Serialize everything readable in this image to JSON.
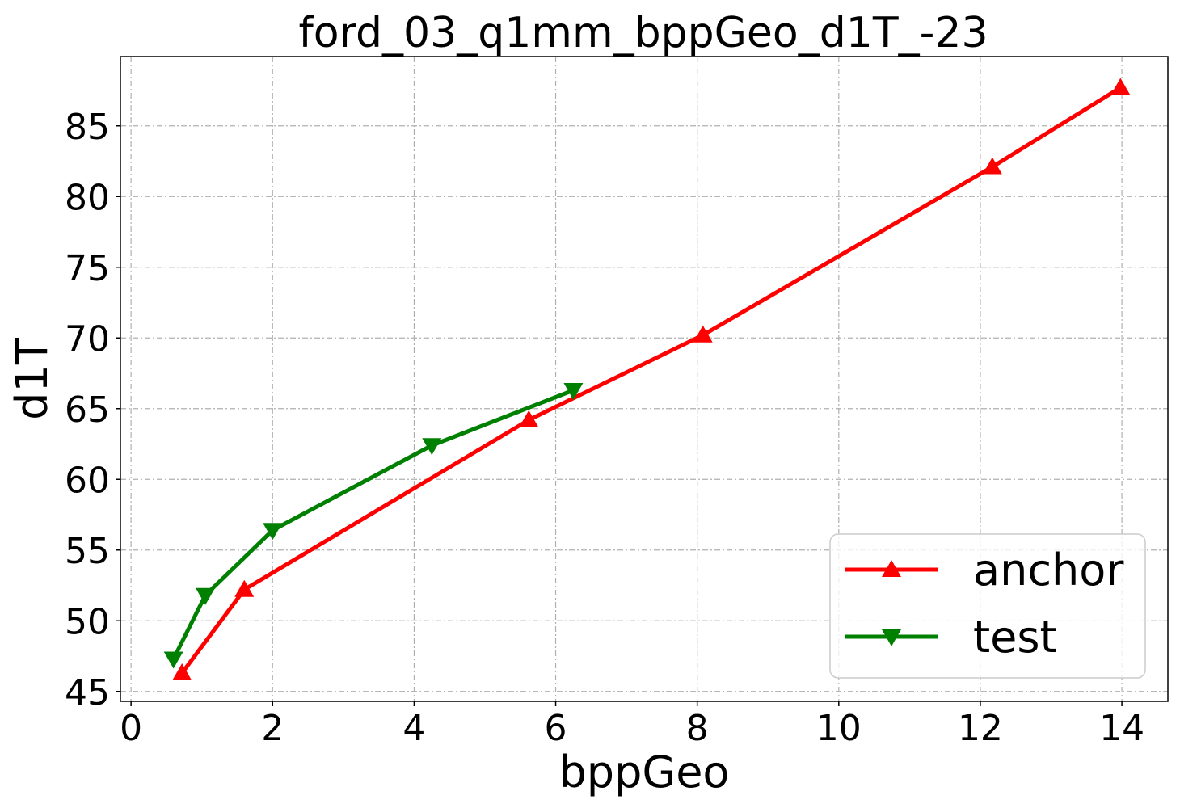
{
  "chart_data": {
    "type": "line",
    "title": "ford_03_q1mm_bppGeo_d1T_-23",
    "xlabel": "bppGeo",
    "ylabel": "d1T",
    "xlim": [
      -0.15,
      14.65
    ],
    "ylim": [
      44.3,
      89.9
    ],
    "xticks": [
      0,
      2,
      4,
      6,
      8,
      10,
      12,
      14
    ],
    "yticks": [
      45,
      50,
      55,
      60,
      65,
      70,
      75,
      80,
      85
    ],
    "grid": true,
    "legend_position": "lower-right",
    "series": [
      {
        "name": "anchor",
        "color": "#ff0000",
        "marker": "triangle-up",
        "x": [
          0.72,
          1.6,
          5.62,
          8.08,
          12.17,
          13.98
        ],
        "y": [
          46.3,
          52.2,
          64.2,
          70.2,
          82.1,
          87.7
        ]
      },
      {
        "name": "test",
        "color": "#008000",
        "marker": "triangle-down",
        "x": [
          0.6,
          1.05,
          2.0,
          4.25,
          6.25
        ],
        "y": [
          47.3,
          51.8,
          56.4,
          62.4,
          66.3
        ]
      }
    ]
  }
}
